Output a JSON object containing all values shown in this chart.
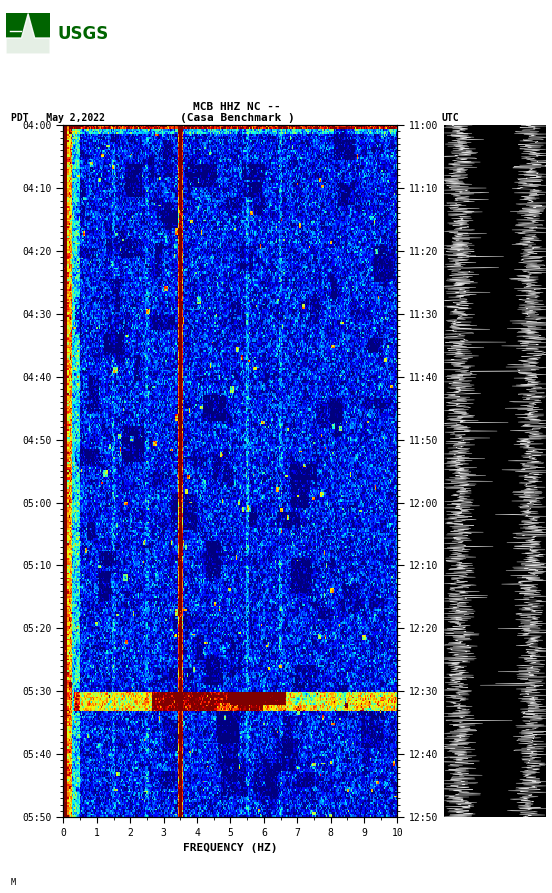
{
  "title_line1": "MCB HHZ NC --",
  "title_line2": "(Casa Benchmark )",
  "left_label": "PDT   May 2,2022",
  "right_label": "UTC",
  "freq_min": 0,
  "freq_max": 10,
  "xlabel": "FREQUENCY (HZ)",
  "ytick_labels_left": [
    "04:00",
    "04:10",
    "04:20",
    "04:30",
    "04:40",
    "04:50",
    "05:00",
    "05:10",
    "05:20",
    "05:30",
    "05:40",
    "05:50"
  ],
  "ytick_labels_right": [
    "11:00",
    "11:10",
    "11:20",
    "11:30",
    "11:40",
    "11:50",
    "12:00",
    "12:10",
    "12:20",
    "12:30",
    "12:40",
    "12:50"
  ],
  "background_color": "#ffffff",
  "n_freq": 300,
  "n_time": 420,
  "colormap": "jet",
  "usgs_logo_color": "#006400",
  "title_fontsize": 8,
  "tick_fontsize": 7,
  "axis_label_fontsize": 8
}
